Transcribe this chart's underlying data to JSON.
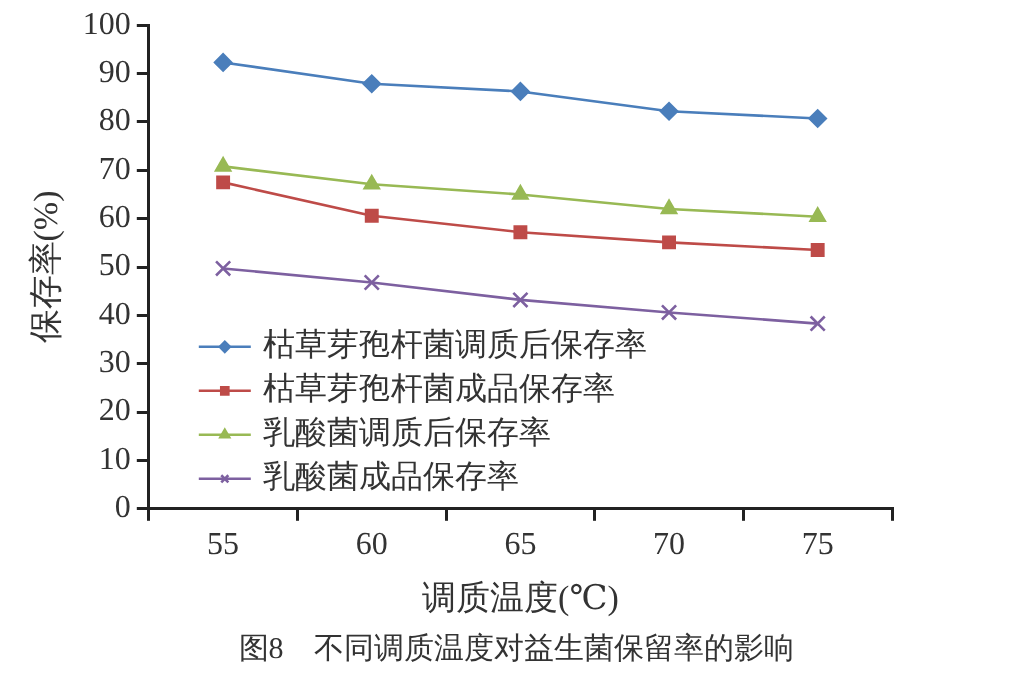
{
  "chart_data": {
    "type": "line",
    "xlabel": "调质温度(℃)",
    "ylabel": "保存率(%)",
    "annotations": [
      "图8　不同调质温度对益生菌保留率的影响"
    ],
    "categories": [
      "55",
      "60",
      "65",
      "70",
      "75"
    ],
    "series": [
      {
        "name": "枯草芽孢杆菌调质后保存率",
        "color": "#4a7ebb",
        "marker": "diamond",
        "values": [
          92.3,
          87.9,
          86.3,
          82.2,
          80.7
        ]
      },
      {
        "name": "枯草芽孢杆菌成品保存率",
        "color": "#be4b48",
        "marker": "square",
        "values": [
          67.5,
          60.6,
          57.2,
          55.1,
          53.5
        ]
      },
      {
        "name": "乳酸菌调质后保存率",
        "color": "#98b954",
        "marker": "triangle",
        "values": [
          70.8,
          67.1,
          65.0,
          62.0,
          60.4
        ]
      },
      {
        "name": "乳酸菌成品保存率",
        "color": "#7d60a0",
        "marker": "cross",
        "values": [
          49.7,
          46.8,
          43.2,
          40.6,
          38.3
        ]
      }
    ],
    "ylim": [
      0,
      100
    ],
    "yticks": [
      0,
      10,
      20,
      30,
      40,
      50,
      60,
      70,
      80,
      90,
      100
    ],
    "grid": false,
    "legend": "bottom left",
    "line_style": "solid"
  }
}
